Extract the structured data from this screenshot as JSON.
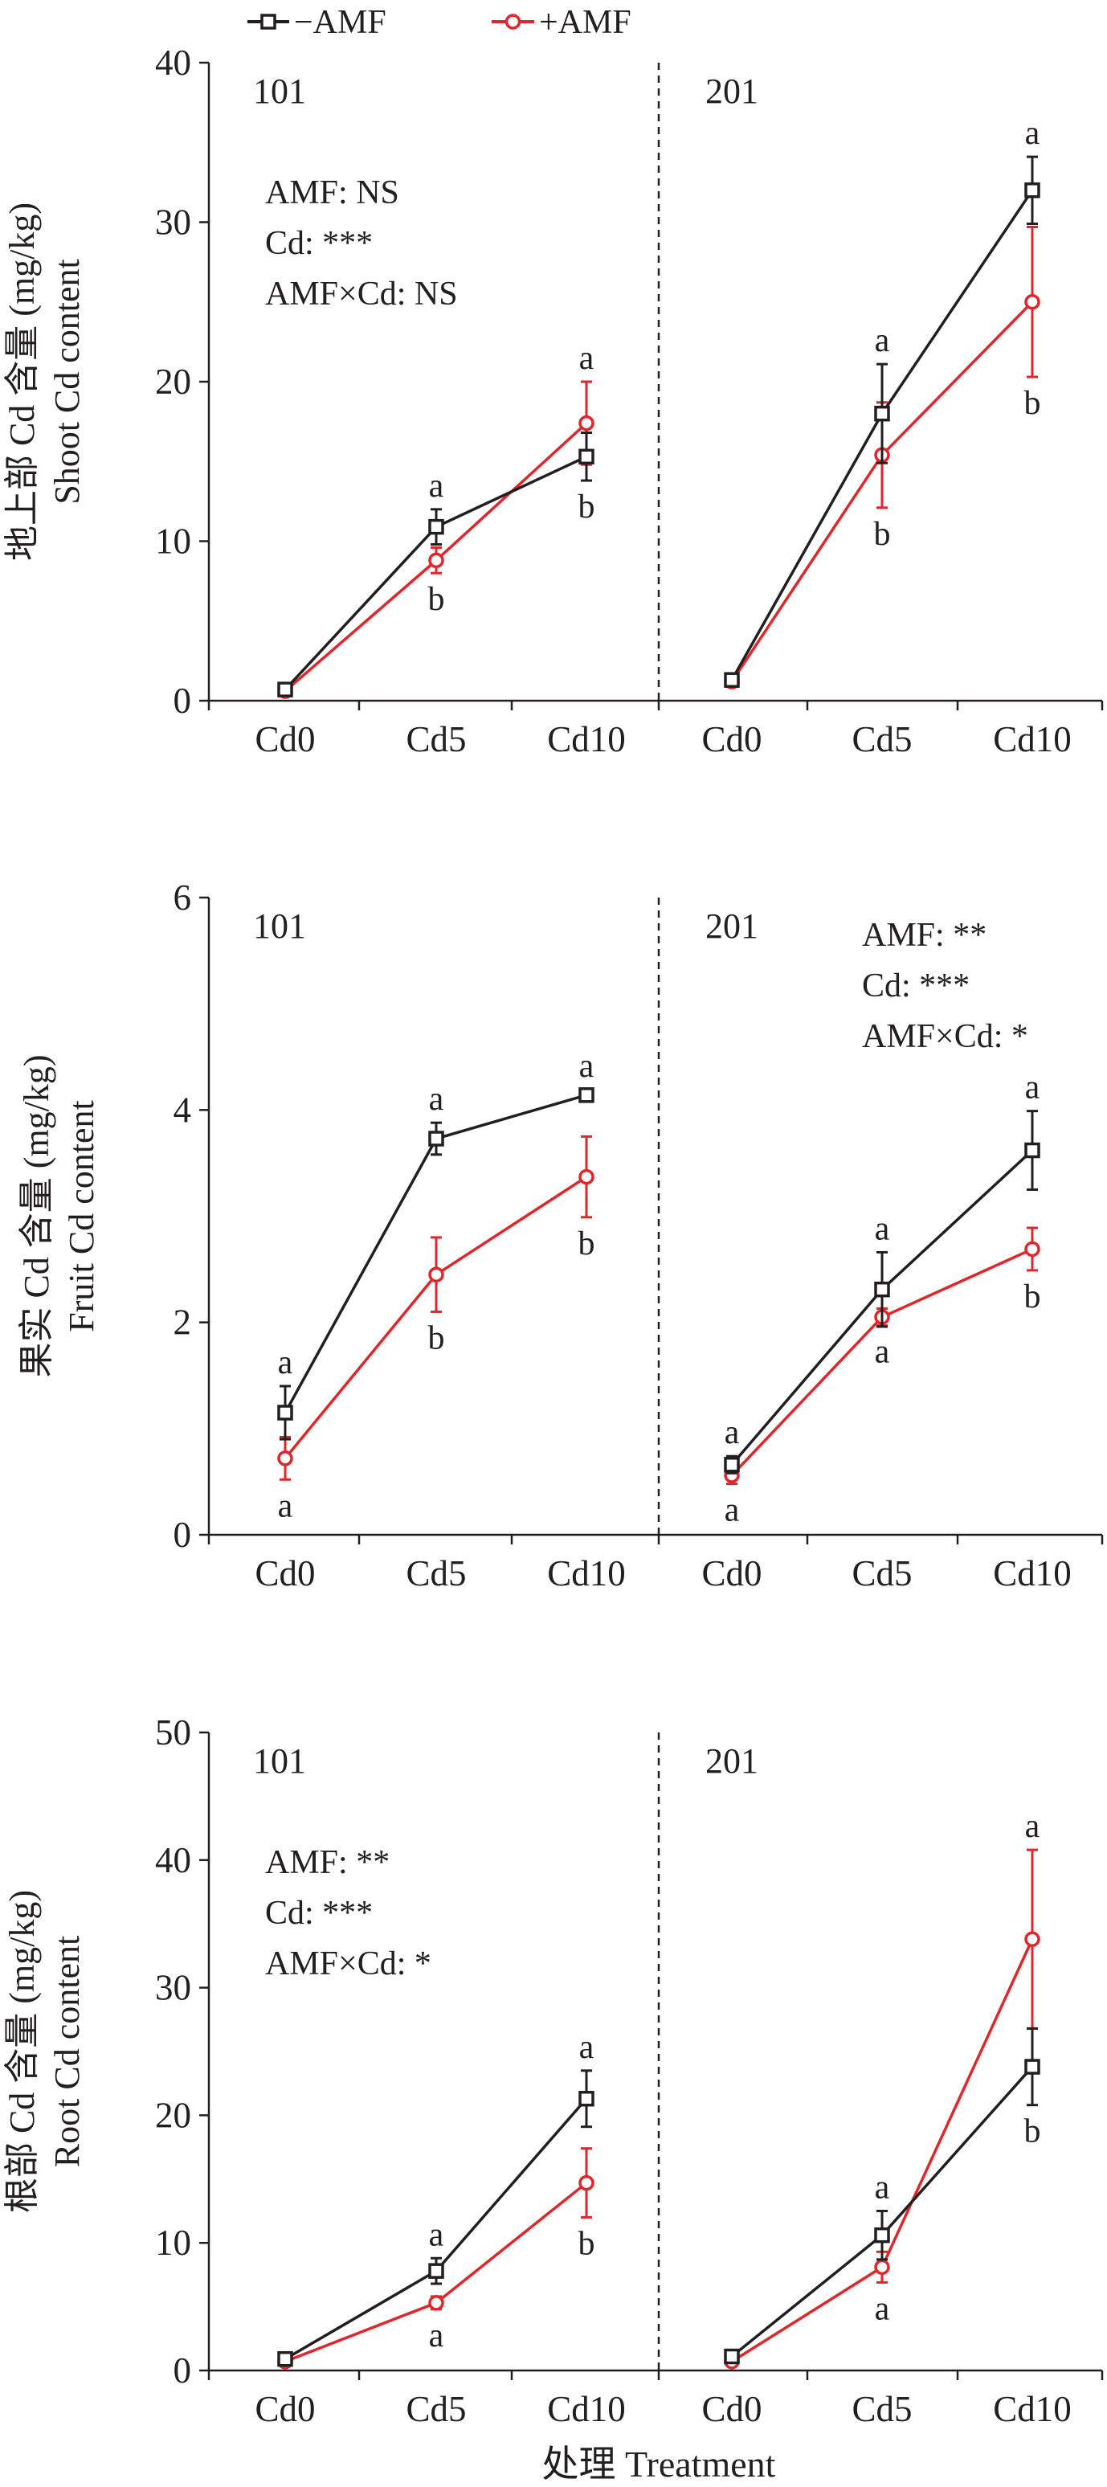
{
  "legend": {
    "items": [
      {
        "label": "−AMF",
        "color": "#231f20",
        "marker": "square"
      },
      {
        "label": "+AMF",
        "color": "#e0262b",
        "marker": "circle"
      }
    ]
  },
  "x_axis_title": "处理 Treatment",
  "chart_data": [
    {
      "type": "line",
      "ylabel_cn": "地上部 Cd 含量 (mg/kg)",
      "ylabel_en": "Shoot Cd content",
      "ylim": [
        0,
        40
      ],
      "yticks": [
        0,
        10,
        20,
        30,
        40
      ],
      "categories": [
        "Cd0",
        "Cd5",
        "Cd10"
      ],
      "groups": [
        {
          "label": "101",
          "stats": [
            "AMF: NS",
            "Cd: ***",
            "AMF×Cd: NS"
          ],
          "stats_position": "left",
          "series": [
            {
              "name": "−AMF",
              "values": [
                0.7,
                10.9,
                15.3
              ],
              "errors": [
                0.3,
                1.1,
                1.5
              ],
              "letters": [
                "",
                "a",
                "b"
              ],
              "letter_side": [
                "",
                "above",
                "below"
              ]
            },
            {
              "name": "+AMF",
              "values": [
                0.6,
                8.8,
                17.4
              ],
              "errors": [
                0.2,
                0.8,
                2.6
              ],
              "letters": [
                "",
                "b",
                "a"
              ],
              "letter_side": [
                "",
                "below",
                "above"
              ]
            }
          ]
        },
        {
          "label": "201",
          "stats": [],
          "stats_position": "right",
          "series": [
            {
              "name": "−AMF",
              "values": [
                1.3,
                18.0,
                32.0
              ],
              "errors": [
                0.3,
                3.1,
                2.1
              ],
              "letters": [
                "",
                "a",
                "a"
              ],
              "letter_side": [
                "",
                "above",
                "above"
              ]
            },
            {
              "name": "+AMF",
              "values": [
                1.2,
                15.4,
                25.0
              ],
              "errors": [
                0.3,
                3.3,
                4.7
              ],
              "letters": [
                "",
                "b",
                "b"
              ],
              "letter_side": [
                "",
                "below",
                "below"
              ]
            }
          ]
        }
      ]
    },
    {
      "type": "line",
      "ylabel_cn": "果实 Cd 含量 (mg/kg)",
      "ylabel_en": "Fruit Cd content",
      "ylim": [
        0,
        6
      ],
      "yticks": [
        0,
        2,
        4,
        6
      ],
      "categories": [
        "Cd0",
        "Cd5",
        "Cd10"
      ],
      "groups": [
        {
          "label": "101",
          "stats": [],
          "stats_position": "left",
          "series": [
            {
              "name": "−AMF",
              "values": [
                1.15,
                3.73,
                4.14
              ],
              "errors": [
                0.25,
                0.15,
                0.05
              ],
              "letters": [
                "a",
                "a",
                "a"
              ],
              "letter_side": [
                "above",
                "above",
                "above"
              ]
            },
            {
              "name": "+AMF",
              "values": [
                0.72,
                2.45,
                3.37
              ],
              "errors": [
                0.2,
                0.35,
                0.38
              ],
              "letters": [
                "a",
                "b",
                "b"
              ],
              "letter_side": [
                "below",
                "below",
                "below"
              ]
            }
          ]
        },
        {
          "label": "201",
          "stats": [
            "AMF: **",
            "Cd: ***",
            "AMF×Cd: *"
          ],
          "stats_position": "right",
          "series": [
            {
              "name": "−AMF",
              "values": [
                0.66,
                2.31,
                3.62
              ],
              "errors": [
                0.08,
                0.35,
                0.37
              ],
              "letters": [
                "a",
                "a",
                "a"
              ],
              "letter_side": [
                "above",
                "above",
                "above"
              ]
            },
            {
              "name": "+AMF",
              "values": [
                0.56,
                2.05,
                2.69
              ],
              "errors": [
                0.08,
                0.08,
                0.2
              ],
              "letters": [
                "a",
                "a",
                "b"
              ],
              "letter_side": [
                "below",
                "below",
                "below"
              ]
            }
          ]
        }
      ]
    },
    {
      "type": "line",
      "ylabel_cn": "根部 Cd 含量 (mg/kg)",
      "ylabel_en": "Root Cd content",
      "ylim": [
        0,
        50
      ],
      "yticks": [
        0,
        10,
        20,
        30,
        40,
        50
      ],
      "categories": [
        "Cd0",
        "Cd5",
        "Cd10"
      ],
      "groups": [
        {
          "label": "101",
          "stats": [
            "AMF: **",
            "Cd: ***",
            "AMF×Cd: *"
          ],
          "stats_position": "left",
          "series": [
            {
              "name": "−AMF",
              "values": [
                0.9,
                7.8,
                21.3
              ],
              "errors": [
                0.3,
                1.0,
                2.2
              ],
              "letters": [
                "",
                "a",
                "a"
              ],
              "letter_side": [
                "",
                "above",
                "above"
              ]
            },
            {
              "name": "+AMF",
              "values": [
                0.7,
                5.3,
                14.7
              ],
              "errors": [
                0.2,
                0.5,
                2.7
              ],
              "letters": [
                "",
                "a",
                "b"
              ],
              "letter_side": [
                "",
                "below",
                "below"
              ]
            }
          ]
        },
        {
          "label": "201",
          "stats": [],
          "stats_position": "right",
          "series": [
            {
              "name": "−AMF",
              "values": [
                1.1,
                10.6,
                23.8
              ],
              "errors": [
                0.3,
                1.9,
                3.0
              ],
              "letters": [
                "",
                "a",
                "b"
              ],
              "letter_side": [
                "",
                "above",
                "below"
              ]
            },
            {
              "name": "+AMF",
              "values": [
                0.7,
                8.1,
                33.8
              ],
              "errors": [
                0.2,
                1.2,
                7.0
              ],
              "letters": [
                "",
                "a",
                "a"
              ],
              "letter_side": [
                "",
                "below",
                "above"
              ]
            }
          ]
        }
      ]
    }
  ]
}
